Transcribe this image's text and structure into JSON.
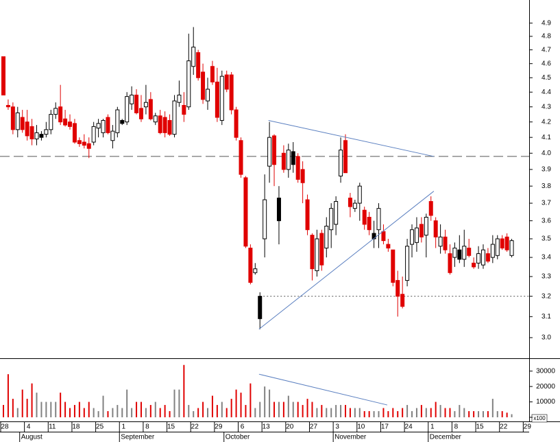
{
  "chart_data": {
    "type": "candlestick",
    "log_scale": true,
    "ylim": [
      2.905,
      5.08
    ],
    "yticks": [
      {
        "value": 3,
        "label": "3.0"
      },
      3.1,
      3.2,
      3.3,
      3.4,
      3.5,
      3.6,
      3.7,
      3.8,
      3.9,
      {
        "value": 4,
        "label": "4.0"
      },
      4.1,
      4.2,
      4.3,
      4.4,
      4.5,
      4.6,
      4.7,
      4.8,
      4.9
    ],
    "xlim": [
      -0.72,
      110.67
    ],
    "xticks": [
      {
        "value": 0,
        "label": "28"
      },
      {
        "value": 5,
        "label": "4"
      },
      {
        "value": 10,
        "label": "11"
      },
      {
        "value": 15,
        "label": "18"
      },
      {
        "value": 20,
        "label": "25"
      },
      {
        "value": 25,
        "label": "1"
      },
      {
        "value": 30,
        "label": "8"
      },
      {
        "value": 35,
        "label": "15"
      },
      {
        "value": 40,
        "label": "22"
      },
      {
        "value": 45,
        "label": "29"
      },
      {
        "value": 50,
        "label": "6"
      },
      {
        "value": 55,
        "label": "13"
      },
      {
        "value": 60,
        "label": "20"
      },
      {
        "value": 65,
        "label": "27"
      },
      {
        "value": 70,
        "label": "3"
      },
      {
        "value": 75,
        "label": "10"
      },
      {
        "value": 80,
        "label": "17"
      },
      {
        "value": 85,
        "label": "24"
      },
      {
        "value": 90,
        "label": "1"
      },
      {
        "value": 95,
        "label": "8"
      },
      {
        "value": 100,
        "label": "15"
      },
      {
        "value": 105,
        "label": "22"
      },
      {
        "value": 110,
        "label": "29"
      }
    ],
    "months": [
      {
        "value": 4,
        "label": "August"
      },
      {
        "value": 25,
        "label": "September"
      },
      {
        "value": 47,
        "label": "October"
      },
      {
        "value": 70,
        "label": "November"
      },
      {
        "value": 90,
        "label": "December"
      }
    ],
    "colors": {
      "down": "#e00000",
      "up": "#ffffff",
      "up_below_prev": "#000000",
      "outline": "#000000",
      "volume_down": "#e00000",
      "volume_up": "#808080",
      "trendline": "#5a7fc0",
      "level": "#555555"
    },
    "ohlc": [
      [
        4.65,
        4.65,
        4.38,
        4.38
      ],
      [
        4.31,
        4.35,
        4.28,
        4.3
      ],
      [
        4.3,
        4.33,
        4.12,
        4.15
      ],
      [
        4.15,
        4.3,
        4.1,
        4.26
      ],
      [
        4.23,
        4.28,
        4.13,
        4.15
      ],
      [
        4.2,
        4.28,
        4.08,
        4.11
      ],
      [
        4.17,
        4.22,
        4.05,
        4.09
      ],
      [
        4.09,
        4.18,
        4.05,
        4.13
      ],
      [
        4.1,
        4.14,
        4.08,
        4.12
      ],
      [
        4.12,
        4.2,
        4.1,
        4.15
      ],
      [
        4.15,
        4.28,
        4.12,
        4.25
      ],
      [
        4.25,
        4.33,
        4.22,
        4.29
      ],
      [
        4.3,
        4.45,
        4.18,
        4.2
      ],
      [
        4.22,
        4.28,
        4.17,
        4.18
      ],
      [
        4.2,
        4.25,
        4.15,
        4.17
      ],
      [
        4.19,
        4.22,
        4.06,
        4.07
      ],
      [
        4.08,
        4.1,
        4.04,
        4.06
      ],
      [
        4.07,
        4.12,
        4.03,
        4.05
      ],
      [
        4.06,
        4.1,
        3.97,
        4.03
      ],
      [
        4.07,
        4.2,
        4.05,
        4.17
      ],
      [
        4.16,
        4.22,
        4.1,
        4.19
      ],
      [
        4.13,
        4.22,
        4.1,
        4.21
      ],
      [
        4.23,
        4.25,
        4.12,
        4.13
      ],
      [
        4.08,
        4.18,
        4.03,
        4.14
      ],
      [
        4.13,
        4.3,
        4.1,
        4.28
      ],
      [
        4.19,
        4.22,
        4.18,
        4.21
      ],
      [
        4.2,
        4.4,
        4.18,
        4.37
      ],
      [
        4.32,
        4.44,
        4.28,
        4.38
      ],
      [
        4.38,
        4.42,
        4.25,
        4.26
      ],
      [
        4.29,
        4.38,
        4.2,
        4.22
      ],
      [
        4.3,
        4.45,
        4.25,
        4.33
      ],
      [
        4.35,
        4.4,
        4.21,
        4.22
      ],
      [
        4.2,
        4.26,
        4.18,
        4.24
      ],
      [
        4.24,
        4.28,
        4.12,
        4.13
      ],
      [
        4.23,
        4.27,
        4.1,
        4.13
      ],
      [
        4.21,
        4.25,
        4.11,
        4.12
      ],
      [
        4.12,
        4.38,
        4.1,
        4.34
      ],
      [
        4.33,
        4.48,
        4.3,
        4.38
      ],
      [
        4.31,
        4.4,
        4.2,
        4.25
      ],
      [
        4.3,
        4.82,
        4.28,
        4.62
      ],
      [
        4.58,
        4.87,
        4.52,
        4.72
      ],
      [
        4.68,
        4.7,
        4.48,
        4.5
      ],
      [
        4.54,
        4.6,
        4.32,
        4.35
      ],
      [
        4.34,
        4.5,
        4.28,
        4.42
      ],
      [
        4.58,
        4.62,
        4.45,
        4.47
      ],
      [
        4.47,
        4.57,
        4.2,
        4.23
      ],
      [
        4.21,
        4.55,
        4.18,
        4.51
      ],
      [
        4.52,
        4.55,
        4.4,
        4.42
      ],
      [
        4.52,
        4.54,
        4.25,
        4.28
      ],
      [
        4.28,
        4.3,
        4.08,
        4.1
      ],
      [
        4.08,
        4.1,
        3.85,
        3.87
      ],
      [
        3.85,
        3.86,
        3.45,
        3.46
      ],
      [
        3.45,
        3.47,
        3.26,
        3.27
      ],
      [
        3.32,
        3.37,
        3.31,
        3.34
      ],
      [
        3.09,
        3.22,
        3.04,
        3.2
      ],
      [
        3.5,
        3.87,
        3.4,
        3.72
      ],
      [
        3.92,
        4.2,
        3.82,
        4.1
      ],
      [
        4.11,
        4.12,
        3.8,
        3.93
      ],
      [
        3.6,
        3.8,
        3.47,
        3.73
      ],
      [
        4.0,
        4.05,
        3.88,
        3.9
      ],
      [
        3.9,
        4.06,
        3.85,
        4.02
      ],
      [
        3.93,
        4.07,
        3.88,
        4.01
      ],
      [
        3.98,
        4.0,
        3.82,
        3.84
      ],
      [
        3.9,
        3.95,
        3.7,
        3.82
      ],
      [
        3.72,
        3.75,
        3.52,
        3.55
      ],
      [
        3.52,
        3.53,
        3.28,
        3.34
      ],
      [
        3.33,
        3.55,
        3.3,
        3.5
      ],
      [
        3.53,
        3.55,
        3.33,
        3.36
      ],
      [
        3.45,
        3.62,
        3.4,
        3.57
      ],
      [
        3.55,
        3.7,
        3.45,
        3.67
      ],
      [
        3.58,
        3.74,
        3.52,
        3.71
      ],
      [
        3.86,
        4.1,
        3.82,
        4.02
      ],
      [
        4.08,
        4.12,
        3.88,
        3.88
      ],
      [
        3.73,
        3.76,
        3.62,
        3.68
      ],
      [
        3.67,
        3.72,
        3.65,
        3.7
      ],
      [
        3.7,
        3.82,
        3.6,
        3.8
      ],
      [
        3.66,
        3.68,
        3.55,
        3.58
      ],
      [
        3.62,
        3.65,
        3.52,
        3.55
      ],
      [
        3.5,
        3.6,
        3.45,
        3.53
      ],
      [
        3.55,
        3.7,
        3.45,
        3.67
      ],
      [
        3.54,
        3.58,
        3.47,
        3.49
      ],
      [
        3.47,
        3.5,
        3.43,
        3.45
      ],
      [
        3.44,
        3.44,
        3.25,
        3.27
      ],
      [
        3.28,
        3.33,
        3.1,
        3.2
      ],
      [
        3.21,
        3.3,
        3.14,
        3.15
      ],
      [
        3.28,
        3.5,
        3.25,
        3.46
      ],
      [
        3.47,
        3.58,
        3.4,
        3.55
      ],
      [
        3.48,
        3.62,
        3.43,
        3.56
      ],
      [
        3.58,
        3.62,
        3.48,
        3.51
      ],
      [
        3.52,
        3.64,
        3.4,
        3.62
      ],
      [
        3.71,
        3.74,
        3.6,
        3.63
      ],
      [
        3.6,
        3.62,
        3.45,
        3.51
      ],
      [
        3.46,
        3.58,
        3.42,
        3.51
      ],
      [
        3.51,
        3.55,
        3.42,
        3.44
      ],
      [
        3.42,
        3.47,
        3.31,
        3.32
      ],
      [
        3.4,
        3.48,
        3.35,
        3.45
      ],
      [
        3.39,
        3.52,
        3.37,
        3.44
      ],
      [
        3.39,
        3.55,
        3.35,
        3.46
      ],
      [
        3.45,
        3.5,
        3.4,
        3.41
      ],
      [
        3.37,
        3.4,
        3.34,
        3.35
      ],
      [
        3.37,
        3.46,
        3.34,
        3.42
      ],
      [
        3.36,
        3.47,
        3.34,
        3.44
      ],
      [
        3.42,
        3.45,
        3.37,
        3.38
      ],
      [
        3.4,
        3.52,
        3.37,
        3.47
      ],
      [
        3.41,
        3.52,
        3.39,
        3.5
      ],
      [
        3.5,
        3.52,
        3.44,
        3.45
      ],
      [
        3.51,
        3.53,
        3.43,
        3.44
      ],
      [
        3.41,
        3.5,
        3.4,
        3.49
      ]
    ],
    "volume": [
      8000,
      28000,
      12000,
      6000,
      18000,
      12000,
      22000,
      16000,
      10000,
      10000,
      10000,
      10000,
      16000,
      10000,
      6000,
      8000,
      10000,
      6000,
      10000,
      6000,
      4000,
      14000,
      4000,
      6000,
      8000,
      6000,
      18000,
      6000,
      10000,
      10000,
      6000,
      8000,
      10000,
      6000,
      8000,
      4000,
      18000,
      18000,
      34000,
      8000,
      4000,
      6000,
      10000,
      6000,
      14000,
      8000,
      10000,
      6000,
      12000,
      18000,
      16000,
      8000,
      22000,
      6000,
      10000,
      20000,
      18000,
      10000,
      10000,
      10000,
      14000,
      10000,
      10000,
      8000,
      12000,
      10000,
      6000,
      8000,
      6000,
      6000,
      8000,
      8000,
      8000,
      6000,
      6000,
      6000,
      4000,
      4000,
      4000,
      4000,
      6000,
      4000,
      6000,
      4000,
      6000,
      8000,
      4000,
      6000,
      8000,
      6000,
      6000,
      10000,
      8000,
      6000,
      6000,
      4000,
      8000,
      6000,
      4000,
      4000,
      4000,
      4000,
      4000,
      12000,
      4000,
      4000,
      3000,
      2000
    ],
    "volume_ylim": [
      0,
      37000
    ],
    "volume_yticks": [
      0,
      10000,
      20000,
      30000
    ],
    "volume_unit_label": "x100",
    "trendlines": [
      {
        "x": [
          55.8,
          90.6
        ],
        "y": [
          4.21,
          3.98
        ]
      },
      {
        "x": [
          53.8,
          90.6
        ],
        "y": [
          3.04,
          3.77
        ]
      }
    ],
    "levels": [
      {
        "y": 3.98,
        "style": "dashed",
        "x_start": -0.72
      },
      {
        "y": 3.2,
        "style": "dotted",
        "x_start": 54
      }
    ],
    "volume_trendlines": [
      {
        "x": [
          53.8,
          80.8
        ],
        "y": [
          28000,
          8000
        ]
      }
    ]
  }
}
